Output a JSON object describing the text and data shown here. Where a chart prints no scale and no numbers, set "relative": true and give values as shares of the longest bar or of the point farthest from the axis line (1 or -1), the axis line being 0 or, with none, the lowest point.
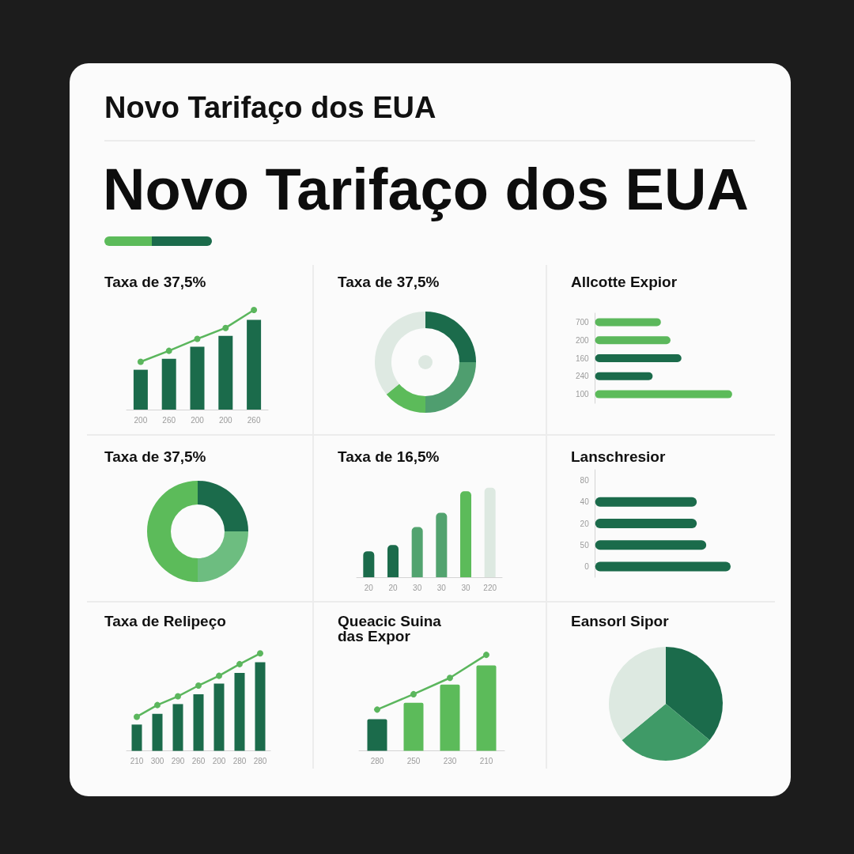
{
  "chart_data": [
    {
      "type": "other",
      "annotations": [
        "Novo Tarifaço dos EUA"
      ],
      "title": "Novo Tarifaço dos EUA"
    },
    {
      "type": "bar",
      "title": "Taxa de 37,5%",
      "categories": [
        "200",
        "260",
        "200",
        "200",
        "260"
      ],
      "relative": true,
      "series": [
        {
          "color": "#1b6b4b",
          "values": [
            0.4,
            0.51,
            0.63,
            0.74,
            0.9
          ]
        },
        {
          "type": "line",
          "color": "#5bb65d",
          "values": [
            0.48,
            0.59,
            0.71,
            0.82,
            1
          ]
        }
      ],
      "marker": "circle"
    },
    {
      "type": "donut",
      "title": "Taxa de 37,5%",
      "categories": [
        null,
        null,
        null,
        null
      ],
      "values": [
        25,
        25,
        14,
        36
      ],
      "colors": [
        "#1b6b4b",
        "#4f9e6f",
        "#5cbb5a",
        "#dee9e2"
      ]
    },
    {
      "type": "bar",
      "orientation": "horizontal",
      "title": "Allcotte Expior",
      "categories": [
        "700",
        "200",
        "160",
        "240",
        "100"
      ],
      "relative": true,
      "values": [
        0.48,
        0.55,
        0.63,
        0.42,
        1
      ],
      "colors": [
        "#5cb85c",
        "#5cb85c",
        "#1b6b4b",
        "#1b6b4b",
        "#5cbb5a"
      ]
    },
    {
      "type": "donut",
      "title": "Taxa de 37,5%",
      "categories": [
        null,
        null,
        null
      ],
      "values": [
        25,
        25,
        50
      ],
      "colors": [
        "#1b6b4b",
        "#6dbd80",
        "#5cbb5a"
      ]
    },
    {
      "type": "bar",
      "title": "Taxa de 16,5%",
      "categories": [
        "20",
        "20",
        "30",
        "30",
        "30",
        "220"
      ],
      "relative": true,
      "values": [
        0.29,
        0.36,
        0.56,
        0.72,
        0.96,
        1
      ],
      "colors": [
        "#1b6b4b",
        "#1b6b4b",
        "#52a36f",
        "#52a36f",
        "#5cbb5a",
        "#dde9e1"
      ]
    },
    {
      "type": "bar",
      "orientation": "horizontal",
      "title": "Lanschresior",
      "categories": [
        "80",
        "40",
        "20",
        "50",
        "0"
      ],
      "relative": true,
      "values": [
        null,
        0.75,
        0.75,
        0.82,
        1
      ],
      "color": "#1b6b4b"
    },
    {
      "type": "bar",
      "title": "Taxa de Relipeço",
      "categories": [
        "210",
        "300",
        "290",
        "260",
        "200",
        "280",
        "280"
      ],
      "relative": true,
      "series": [
        {
          "color": "#1b6b4b",
          "values": [
            0.27,
            0.38,
            0.48,
            0.58,
            0.69,
            0.8,
            0.91
          ]
        },
        {
          "type": "line",
          "color": "#5bb65d",
          "values": [
            0.35,
            0.47,
            0.56,
            0.67,
            0.77,
            0.89,
            1
          ]
        }
      ],
      "marker": "circle"
    },
    {
      "type": "bar",
      "title": "Queacic Suina das Expor",
      "categories": [
        "280",
        "250",
        "230",
        "210"
      ],
      "relative": true,
      "series": [
        {
          "colors": [
            "#1b6b4b",
            "#5cbb5a",
            "#5cbb5a",
            "#5cbb5a"
          ],
          "values": [
            0.33,
            0.5,
            0.69,
            0.89
          ]
        },
        {
          "type": "line",
          "color": "#5bb65d",
          "values": [
            0.43,
            0.59,
            0.76,
            1
          ]
        }
      ],
      "marker": "circle"
    },
    {
      "type": "pie",
      "title": "Eansorl Sipor",
      "categories": [
        null,
        null,
        null
      ],
      "values": [
        36,
        28,
        36
      ],
      "colors": [
        "#1b6b4b",
        "#3f9a67",
        "#dde9e1"
      ]
    }
  ]
}
